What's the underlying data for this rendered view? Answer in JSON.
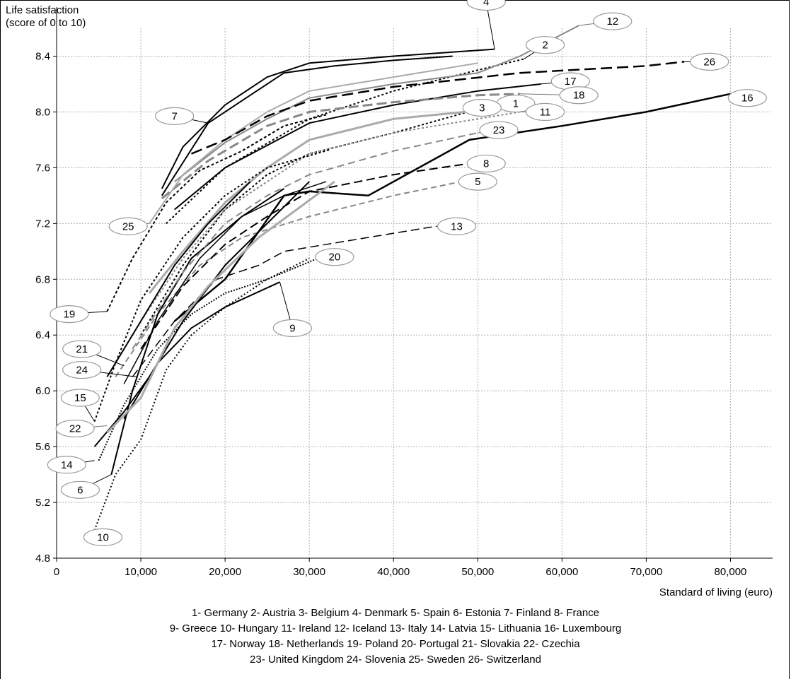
{
  "chart_data": {
    "type": "line",
    "ylabel_line1": "Life satisfaction",
    "ylabel_line2": "(score of 0 to 10)",
    "xlabel": "Standard of living (euro)",
    "xlim": [
      0,
      85000
    ],
    "ylim": [
      4.8,
      8.6
    ],
    "x_ticks": [
      0,
      10000,
      20000,
      30000,
      40000,
      50000,
      60000,
      70000,
      80000
    ],
    "x_tick_labels": [
      "0",
      "10,000",
      "20,000",
      "30,000",
      "40,000",
      "50,000",
      "60,000",
      "70,000",
      "80,000"
    ],
    "y_ticks": [
      4.8,
      5.2,
      5.6,
      6.0,
      6.4,
      6.8,
      7.2,
      7.6,
      8.0,
      8.4
    ],
    "y_tick_labels": [
      "4.8",
      "5.2",
      "5.6",
      "6.0",
      "6.4",
      "6.8",
      "7.2",
      "7.6",
      "8.0",
      "8.4"
    ],
    "grid": "dotted",
    "legend_lines": [
      "1- Germany  2- Austria  3- Belgium  4- Denmark  5- Spain  6- Estonia  7- Finland  8- France",
      "9- Greece  10- Hungary  11- Ireland  12- Iceland  13- Italy  14- Latvia  15- Lithuania  16- Luxembourg",
      "17- Norway  18- Netherlands  19- Poland  20- Portugal  21- Slovakia  22- Czechia",
      "23- United Kingdom  24- Slovenia  25- Sweden  26- Switzerland"
    ],
    "series": [
      {
        "id": "1",
        "color": "#000000",
        "width": 2,
        "dash": "3,3",
        "points": [
          [
            10000,
            6.4
          ],
          [
            15000,
            6.9
          ],
          [
            20000,
            7.3
          ],
          [
            25000,
            7.55
          ],
          [
            30000,
            7.7
          ],
          [
            40000,
            7.85
          ],
          [
            50000,
            8.02
          ]
        ],
        "label_at": [
          54500,
          8.06
        ],
        "leader": [
          50500,
          8.02
        ]
      },
      {
        "id": "2",
        "color": "#000000",
        "width": 2,
        "dash": "3,3",
        "points": [
          [
            13000,
            7.2
          ],
          [
            20000,
            7.6
          ],
          [
            30000,
            7.95
          ],
          [
            40000,
            8.15
          ],
          [
            50000,
            8.3
          ],
          [
            55500,
            8.38
          ]
        ],
        "label_at": [
          58000,
          8.48
        ],
        "leader": [
          55500,
          8.38
        ]
      },
      {
        "id": "3",
        "color": "#aaaaaa",
        "width": 3,
        "dash": "",
        "points": [
          [
            11000,
            6.7
          ],
          [
            15000,
            7.0
          ],
          [
            20000,
            7.35
          ],
          [
            25000,
            7.6
          ],
          [
            30000,
            7.8
          ],
          [
            40000,
            7.95
          ],
          [
            48500,
            8.0
          ]
        ],
        "label_at": [
          50500,
          8.03
        ],
        "leader": [
          48500,
          8.0
        ]
      },
      {
        "id": "4",
        "color": "#000000",
        "width": 2,
        "dash": "",
        "points": [
          [
            12500,
            7.45
          ],
          [
            15000,
            7.75
          ],
          [
            20000,
            8.05
          ],
          [
            25000,
            8.25
          ],
          [
            30000,
            8.35
          ],
          [
            40000,
            8.4
          ],
          [
            52000,
            8.45
          ]
        ],
        "label_at": [
          51000,
          8.79
        ],
        "leader": [
          52000,
          8.45
        ]
      },
      {
        "id": "5",
        "color": "#888888",
        "width": 2,
        "dash": "8,5",
        "points": [
          [
            7000,
            6.1
          ],
          [
            12000,
            6.55
          ],
          [
            17000,
            6.9
          ],
          [
            22000,
            7.1
          ],
          [
            30000,
            7.25
          ],
          [
            40000,
            7.4
          ],
          [
            48000,
            7.5
          ]
        ],
        "label_at": [
          50000,
          7.5
        ],
        "leader": [
          48000,
          7.5
        ]
      },
      {
        "id": "6",
        "color": "#000000",
        "width": 2,
        "dash": "",
        "points": [
          [
            6500,
            5.4
          ],
          [
            9000,
            6.0
          ],
          [
            12000,
            6.55
          ],
          [
            16000,
            6.95
          ],
          [
            22000,
            7.25
          ],
          [
            27000,
            7.45
          ]
        ],
        "label_at": [
          2800,
          5.29
        ],
        "leader": [
          6500,
          5.4
        ]
      },
      {
        "id": "7",
        "color": "#000000",
        "width": 2,
        "dash": "",
        "points": [
          [
            12500,
            7.4
          ],
          [
            18000,
            7.92
          ],
          [
            23000,
            8.12
          ],
          [
            27000,
            8.28
          ],
          [
            33000,
            8.33
          ],
          [
            40000,
            8.37
          ],
          [
            47000,
            8.4
          ]
        ],
        "label_at": [
          14000,
          7.97
        ],
        "leader": [
          18000,
          7.92
        ]
      },
      {
        "id": "8",
        "color": "#000000",
        "width": 2,
        "dash": "12,6",
        "points": [
          [
            10000,
            6.3
          ],
          [
            15000,
            6.75
          ],
          [
            20000,
            7.05
          ],
          [
            25000,
            7.25
          ],
          [
            30000,
            7.43
          ],
          [
            40000,
            7.55
          ],
          [
            49000,
            7.63
          ]
        ],
        "label_at": [
          51000,
          7.63
        ],
        "leader": [
          49000,
          7.63
        ]
      },
      {
        "id": "9",
        "color": "#000000",
        "width": 2,
        "dash": "",
        "points": [
          [
            8000,
            5.8
          ],
          [
            12000,
            6.2
          ],
          [
            16000,
            6.45
          ],
          [
            20000,
            6.6
          ],
          [
            26500,
            6.78
          ]
        ],
        "label_at": [
          28000,
          6.45
        ],
        "leader": [
          26500,
          6.78
        ]
      },
      {
        "id": "10",
        "color": "#000000",
        "width": 2,
        "dash": "2,3",
        "points": [
          [
            4500,
            5.0
          ],
          [
            7000,
            5.4
          ],
          [
            10000,
            5.65
          ],
          [
            13000,
            6.15
          ],
          [
            16000,
            6.4
          ],
          [
            20000,
            6.6
          ],
          [
            25000,
            6.8
          ],
          [
            30000,
            6.95
          ]
        ],
        "label_at": [
          5500,
          4.95
        ],
        "leader": [
          4500,
          5.0
        ]
      },
      {
        "id": "11",
        "color": "#888888",
        "width": 2,
        "dash": "3,3",
        "points": [
          [
            10000,
            6.5
          ],
          [
            15000,
            6.95
          ],
          [
            20000,
            7.3
          ],
          [
            25000,
            7.5
          ],
          [
            30000,
            7.7
          ],
          [
            40000,
            7.85
          ],
          [
            55000,
            8.0
          ]
        ],
        "label_at": [
          58000,
          8.0
        ],
        "leader": [
          55000,
          8.0
        ]
      },
      {
        "id": "12",
        "color": "#888888",
        "width": 2,
        "dash": "",
        "points": [
          [
            14000,
            7.5
          ],
          [
            20000,
            7.78
          ],
          [
            25000,
            7.95
          ],
          [
            30000,
            8.1
          ],
          [
            40000,
            8.2
          ],
          [
            50000,
            8.28
          ],
          [
            55000,
            8.4
          ],
          [
            62000,
            8.62
          ]
        ],
        "label_at": [
          66000,
          8.65
        ],
        "leader": [
          62000,
          8.62
        ]
      },
      {
        "id": "13",
        "color": "#000000",
        "width": 1.5,
        "dash": "12,6",
        "points": [
          [
            9000,
            6.1
          ],
          [
            14000,
            6.5
          ],
          [
            19000,
            6.8
          ],
          [
            24000,
            6.9
          ],
          [
            27000,
            7.0
          ],
          [
            35000,
            7.08
          ],
          [
            45000,
            7.18
          ]
        ],
        "label_at": [
          47500,
          7.18
        ],
        "leader": [
          45000,
          7.18
        ]
      },
      {
        "id": "14",
        "color": "#000000",
        "width": 2,
        "dash": "",
        "points": [
          [
            4500,
            5.6
          ],
          [
            8000,
            5.85
          ],
          [
            11000,
            6.1
          ],
          [
            15000,
            6.5
          ],
          [
            20000,
            6.9
          ],
          [
            25000,
            7.2
          ],
          [
            30000,
            7.5
          ]
        ],
        "label_at": [
          1200,
          5.47
        ],
        "leader": [
          4500,
          5.5
        ]
      },
      {
        "id": "15",
        "color": "#000000",
        "width": 2,
        "dash": "3,3",
        "points": [
          [
            4500,
            5.78
          ],
          [
            7000,
            6.2
          ],
          [
            10000,
            6.65
          ],
          [
            15000,
            7.1
          ],
          [
            20000,
            7.4
          ],
          [
            25000,
            7.6
          ],
          [
            32500,
            7.73
          ]
        ],
        "label_at": [
          2800,
          5.95
        ],
        "leader": [
          4500,
          5.78
        ]
      },
      {
        "id": "16",
        "color": "#000000",
        "width": 2.5,
        "dash": "",
        "points": [
          [
            14000,
            6.5
          ],
          [
            20000,
            6.8
          ],
          [
            27000,
            7.4
          ],
          [
            30000,
            7.43
          ],
          [
            37000,
            7.4
          ],
          [
            49000,
            7.8
          ],
          [
            60000,
            7.9
          ],
          [
            70000,
            8.0
          ],
          [
            80000,
            8.13
          ]
        ],
        "label_at": [
          82000,
          8.1
        ],
        "leader": [
          80000,
          8.13
        ]
      },
      {
        "id": "17",
        "color": "#000000",
        "width": 2,
        "dash": "",
        "points": [
          [
            14000,
            7.3
          ],
          [
            20000,
            7.6
          ],
          [
            30000,
            7.92
          ],
          [
            40000,
            8.05
          ],
          [
            50000,
            8.15
          ],
          [
            57500,
            8.2
          ]
        ],
        "label_at": [
          61000,
          8.22
        ],
        "leader": [
          57500,
          8.2
        ]
      },
      {
        "id": "18",
        "color": "#888888",
        "width": 3,
        "dash": "14,6",
        "points": [
          [
            12500,
            7.38
          ],
          [
            18000,
            7.65
          ],
          [
            25000,
            7.9
          ],
          [
            30000,
            8.0
          ],
          [
            40000,
            8.07
          ],
          [
            50000,
            8.12
          ],
          [
            55000,
            8.13
          ]
        ],
        "label_at": [
          62000,
          8.12
        ],
        "leader": [
          55000,
          8.13
        ]
      },
      {
        "id": "19",
        "color": "#000000",
        "width": 2,
        "dash": "4,3",
        "points": [
          [
            6000,
            6.57
          ],
          [
            9000,
            6.95
          ],
          [
            13000,
            7.35
          ],
          [
            17000,
            7.58
          ],
          [
            22000,
            7.72
          ],
          [
            27000,
            7.9
          ],
          [
            32000,
            7.98
          ]
        ],
        "label_at": [
          1500,
          6.55
        ],
        "leader": [
          6000,
          6.57
        ]
      },
      {
        "id": "20",
        "color": "#000000",
        "width": 2,
        "dash": "2,2",
        "points": [
          [
            5000,
            5.5
          ],
          [
            8000,
            5.9
          ],
          [
            12000,
            6.3
          ],
          [
            16000,
            6.55
          ],
          [
            20000,
            6.7
          ],
          [
            25000,
            6.8
          ],
          [
            31000,
            6.95
          ]
        ],
        "label_at": [
          33000,
          6.96
        ],
        "leader": [
          31000,
          6.95
        ]
      },
      {
        "id": "21",
        "color": "#000000",
        "width": 2,
        "dash": "",
        "points": [
          [
            6000,
            6.1
          ],
          [
            10000,
            6.5
          ],
          [
            14000,
            6.9
          ],
          [
            18000,
            7.2
          ],
          [
            23000,
            7.5
          ]
        ],
        "label_at": [
          3000,
          6.3
        ],
        "leader": [
          8000,
          6.18
        ]
      },
      {
        "id": "22",
        "color": "#aaaaaa",
        "width": 3,
        "dash": "",
        "points": [
          [
            6000,
            5.7
          ],
          [
            10000,
            5.95
          ],
          [
            14000,
            6.45
          ],
          [
            18000,
            6.75
          ],
          [
            24000,
            7.1
          ],
          [
            33000,
            7.5
          ]
        ],
        "label_at": [
          2200,
          5.73
        ],
        "leader": [
          6000,
          5.75
        ]
      },
      {
        "id": "23",
        "color": "#888888",
        "width": 2,
        "dash": "10,6",
        "points": [
          [
            9000,
            6.3
          ],
          [
            15000,
            6.85
          ],
          [
            20000,
            7.2
          ],
          [
            25000,
            7.4
          ],
          [
            30000,
            7.55
          ],
          [
            40000,
            7.72
          ],
          [
            50000,
            7.85
          ]
        ],
        "label_at": [
          52500,
          7.87
        ],
        "leader": [
          50000,
          7.85
        ]
      },
      {
        "id": "24",
        "color": "#000000",
        "width": 1.5,
        "dash": "",
        "points": [
          [
            8000,
            6.05
          ],
          [
            12000,
            6.5
          ],
          [
            17000,
            6.95
          ],
          [
            22000,
            7.25
          ],
          [
            27000,
            7.4
          ],
          [
            32000,
            7.5
          ]
        ],
        "label_at": [
          3000,
          6.15
        ],
        "leader": [
          9500,
          6.1
        ]
      },
      {
        "id": "25",
        "color": "#aaaaaa",
        "width": 2,
        "dash": "",
        "points": [
          [
            11000,
            7.2
          ],
          [
            15000,
            7.55
          ],
          [
            20000,
            7.8
          ],
          [
            25000,
            8.0
          ],
          [
            30000,
            8.15
          ],
          [
            40000,
            8.25
          ],
          [
            50000,
            8.35
          ]
        ],
        "label_at": [
          8500,
          7.18
        ],
        "leader": [
          11000,
          7.2
        ]
      },
      {
        "id": "26",
        "color": "#000000",
        "width": 2.5,
        "dash": "16,7",
        "points": [
          [
            16000,
            7.7
          ],
          [
            20000,
            7.8
          ],
          [
            25000,
            7.97
          ],
          [
            30000,
            8.08
          ],
          [
            40000,
            8.18
          ],
          [
            55000,
            8.28
          ],
          [
            70000,
            8.33
          ],
          [
            74500,
            8.36
          ]
        ],
        "label_at": [
          77500,
          8.36
        ],
        "leader": [
          74500,
          8.36
        ]
      }
    ]
  }
}
